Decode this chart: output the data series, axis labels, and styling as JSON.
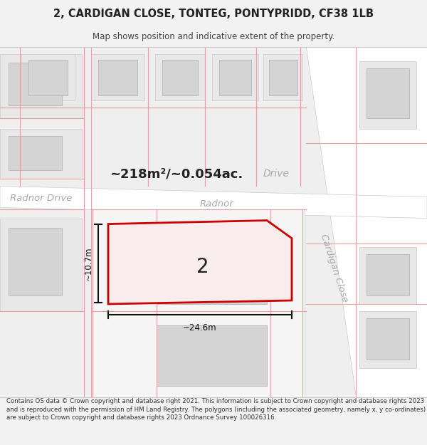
{
  "title_line1": "2, CARDIGAN CLOSE, TONTEG, PONTYPRIDD, CF38 1LB",
  "title_line2": "Map shows position and indicative extent of the property.",
  "footer_text": "Contains OS data © Crown copyright and database right 2021. This information is subject to Crown copyright and database rights 2023 and is reproduced with the permission of HM Land Registry. The polygons (including the associated geometry, namely x, y co-ordinates) are subject to Crown copyright and database rights 2023 Ordnance Survey 100026316.",
  "area_label": "~218m²/~0.054ac.",
  "width_label": "~24.6m",
  "height_label": "~10.7m",
  "number_label": "2",
  "bg_color": "#f2f2f2",
  "road_fill": "#ffffff",
  "block_fill": "#d4d4d4",
  "inner_block_fill": "#c8c8c8",
  "prop_fill": "#f5eded",
  "prop_edge": "#cc0000",
  "dim_color": "#111111",
  "road_text_color": "#aaaaaa",
  "pink_line": "#e8a0a0",
  "dark_text": "#222222"
}
